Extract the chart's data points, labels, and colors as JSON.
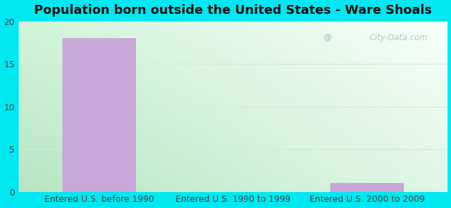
{
  "title": "Population born outside the United States - Ware Shoals",
  "categories": [
    "Entered U.S. before 1990",
    "Entered U.S. 1990 to 1999",
    "Entered U.S. 2000 to 2009"
  ],
  "values": [
    18,
    0,
    1
  ],
  "bar_color": "#c8a8d8",
  "ylim": [
    0,
    20
  ],
  "yticks": [
    0,
    5,
    10,
    15,
    20
  ],
  "background_outer": "#00e8f0",
  "grid_color": "#e0e8e0",
  "title_fontsize": 13,
  "tick_fontsize": 9,
  "watermark": "City-Data.com",
  "bg_top_left": "#d8f0e0",
  "bg_top_right": "#f8fffa",
  "bg_bottom_left": "#c8e8cc",
  "bg_bottom_right": "#e8f8ee"
}
